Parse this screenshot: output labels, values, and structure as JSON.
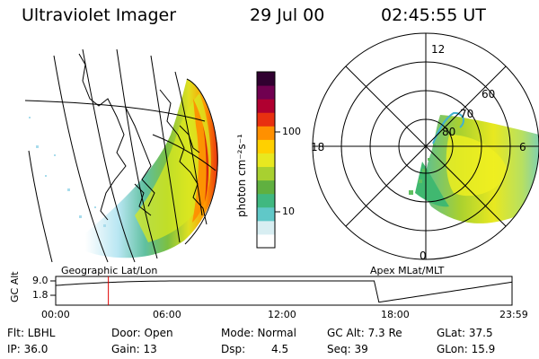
{
  "header": {
    "title": "Ultraviolet Imager",
    "date": "29 Jul 00",
    "time": "02:45:55 UT"
  },
  "colorbar": {
    "unit_label": "photon cm⁻²s⁻¹",
    "ticks": [
      "100",
      "10"
    ],
    "colors": [
      "#ffffff",
      "#d8eef2",
      "#60c8c8",
      "#40b880",
      "#60b040",
      "#a8d030",
      "#e8e820",
      "#ffd000",
      "#ff9000",
      "#e83010",
      "#b00030",
      "#700050",
      "#300030"
    ]
  },
  "geo_panel": {
    "caption": "Geographic Lat/Lon"
  },
  "polar_panel": {
    "caption": "Apex MLat/MLT",
    "mlt_labels": [
      "12",
      "18",
      "6",
      "0"
    ],
    "lat_labels": [
      "60",
      "70",
      "80"
    ]
  },
  "orbit_plot": {
    "ylabel": "GC Alt",
    "yticks": [
      "9.0",
      "1.8"
    ],
    "xticks": [
      "00:00",
      "06:00",
      "12:00",
      "18:00",
      "23:59"
    ],
    "ylim": [
      1.8,
      9.0
    ],
    "marker_time_hours": 2.77
  },
  "info": {
    "filter": "Flt: LBHL",
    "door": "Door: Open",
    "mode": "Mode: Normal",
    "gc_alt": "GC Alt: 7.3 Re",
    "glat": "GLat: 37.5",
    "ip": "IP: 36.0",
    "gain": "Gain: 13",
    "dsp": "Dsp:",
    "dsp_value": "4.5",
    "seq": "Seq: 39",
    "glon": "GLon: 15.9"
  }
}
